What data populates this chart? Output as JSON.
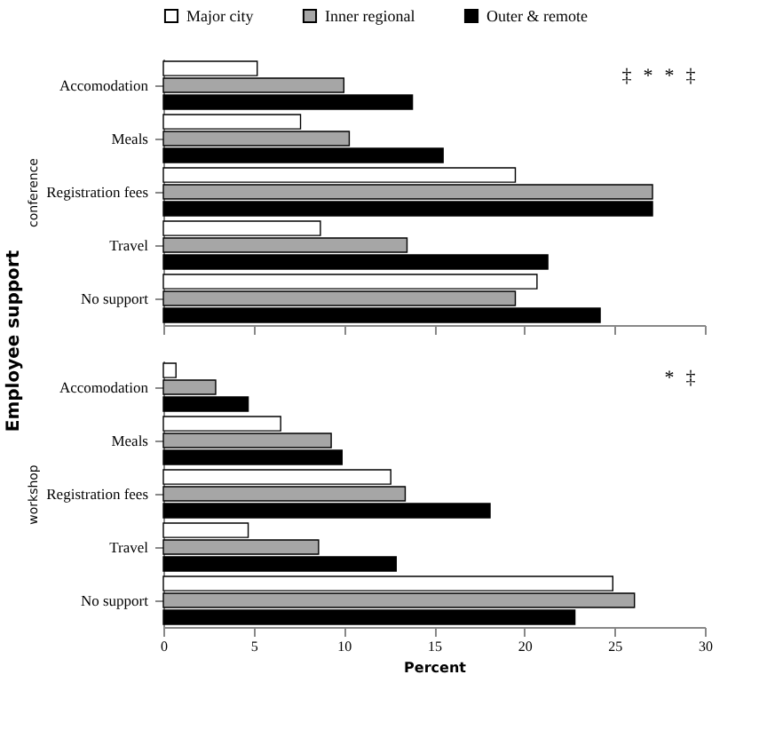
{
  "chart_data": [
    {
      "type": "bar",
      "orientation": "horizontal",
      "title": "Employee support",
      "ylabel": "conference",
      "categories": [
        "Accomodation",
        "Meals",
        "Registration fees",
        "Travel",
        "No support"
      ],
      "series": [
        {
          "name": "Major city",
          "color": "#ffffff",
          "values": [
            5.2,
            7.6,
            19.5,
            8.7,
            20.7
          ]
        },
        {
          "name": "Inner regional",
          "color": "#a6a6a6",
          "values": [
            10.0,
            10.3,
            27.1,
            13.5,
            19.5
          ]
        },
        {
          "name": "Outer & remote",
          "color": "#000000",
          "values": [
            13.8,
            15.5,
            27.1,
            21.3,
            24.2
          ]
        }
      ],
      "xlim": [
        0,
        30
      ],
      "xticks": [
        0,
        5,
        10,
        15,
        20,
        25,
        30
      ],
      "tick_labels": "y",
      "legend": "top",
      "annotations": [
        "‡",
        "*",
        "*",
        "‡"
      ]
    },
    {
      "type": "bar",
      "orientation": "horizontal",
      "ylabel": "workshop",
      "xlabel": "Percent",
      "categories": [
        "Accomodation",
        "Meals",
        "Registration fees",
        "Travel",
        "No support"
      ],
      "series": [
        {
          "color": "#ffffff",
          "values": [
            0.7,
            6.5,
            12.6,
            4.7,
            24.9
          ]
        },
        {
          "color": "#a6a6a6",
          "values": [
            2.9,
            9.3,
            13.4,
            8.6,
            26.1
          ]
        },
        {
          "color": "#000000",
          "values": [
            4.7,
            9.9,
            18.1,
            12.9,
            22.8
          ]
        }
      ],
      "xlim": [
        0,
        30
      ],
      "xticks": [
        0,
        5,
        10,
        15,
        20,
        25,
        30
      ],
      "legend": false,
      "annotations": [
        "*",
        "‡"
      ]
    }
  ]
}
